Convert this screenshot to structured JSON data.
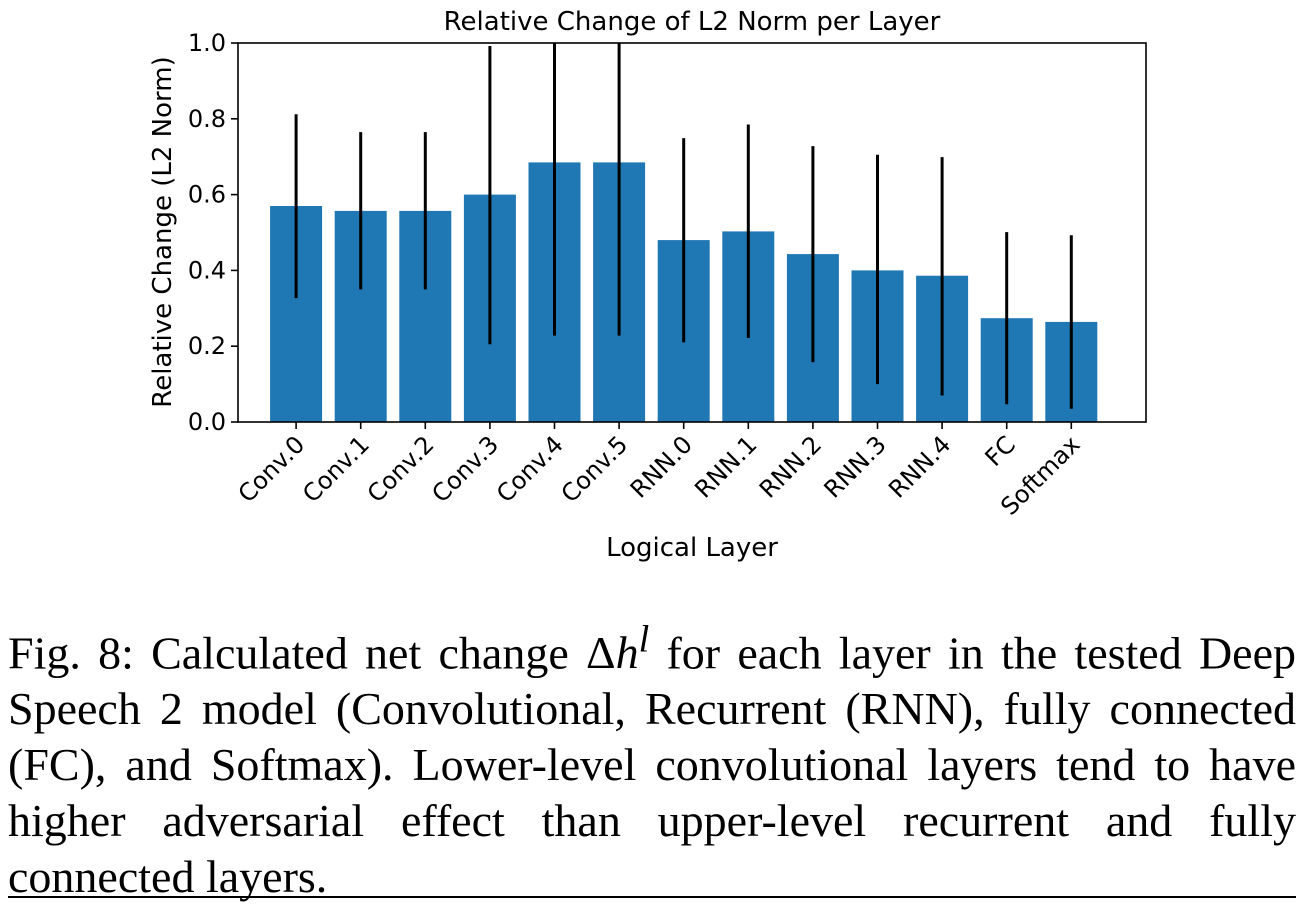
{
  "chart_data": {
    "type": "bar",
    "title": "Relative Change of L2 Norm per Layer",
    "xlabel": "Logical Layer",
    "ylabel": "Relative Change (L2 Norm)",
    "ylim": [
      0.0,
      1.0
    ],
    "yticks": [
      "0.0",
      "0.2",
      "0.4",
      "0.6",
      "0.8",
      "1.0"
    ],
    "categories": [
      "Conv.0",
      "Conv.1",
      "Conv.2",
      "Conv.3",
      "Conv.4",
      "Conv.5",
      "RNN.0",
      "RNN.1",
      "RNN.2",
      "RNN.3",
      "RNN.4",
      "FC",
      "Softmax"
    ],
    "values": [
      0.57,
      0.557,
      0.557,
      0.6,
      0.685,
      0.685,
      0.48,
      0.503,
      0.443,
      0.4,
      0.386,
      0.274,
      0.264
    ],
    "error_low": [
      0.327,
      0.35,
      0.35,
      0.205,
      0.228,
      0.228,
      0.21,
      0.222,
      0.158,
      0.1,
      0.07,
      0.047,
      0.035
    ],
    "error_high": [
      0.812,
      0.765,
      0.765,
      0.992,
      1.0,
      1.0,
      0.749,
      0.785,
      0.728,
      0.705,
      0.699,
      0.501,
      0.493
    ],
    "bar_color": "#1f77b4",
    "error_color": "#000000",
    "grid": false
  },
  "caption": {
    "fig_label": "Fig. 8:",
    "text_before_math": "Calculated net change",
    "math_delta": "Δ",
    "math_var": "h",
    "math_sup": "l",
    "text_after_math": "for each layer in the tested Deep Speech 2 model (Convolutional, Recurrent (RNN), fully connected (FC), and Softmax). Lower-level convolutional layers tend to have higher adversarial effect than upper-level recurrent and fully connected layers."
  }
}
